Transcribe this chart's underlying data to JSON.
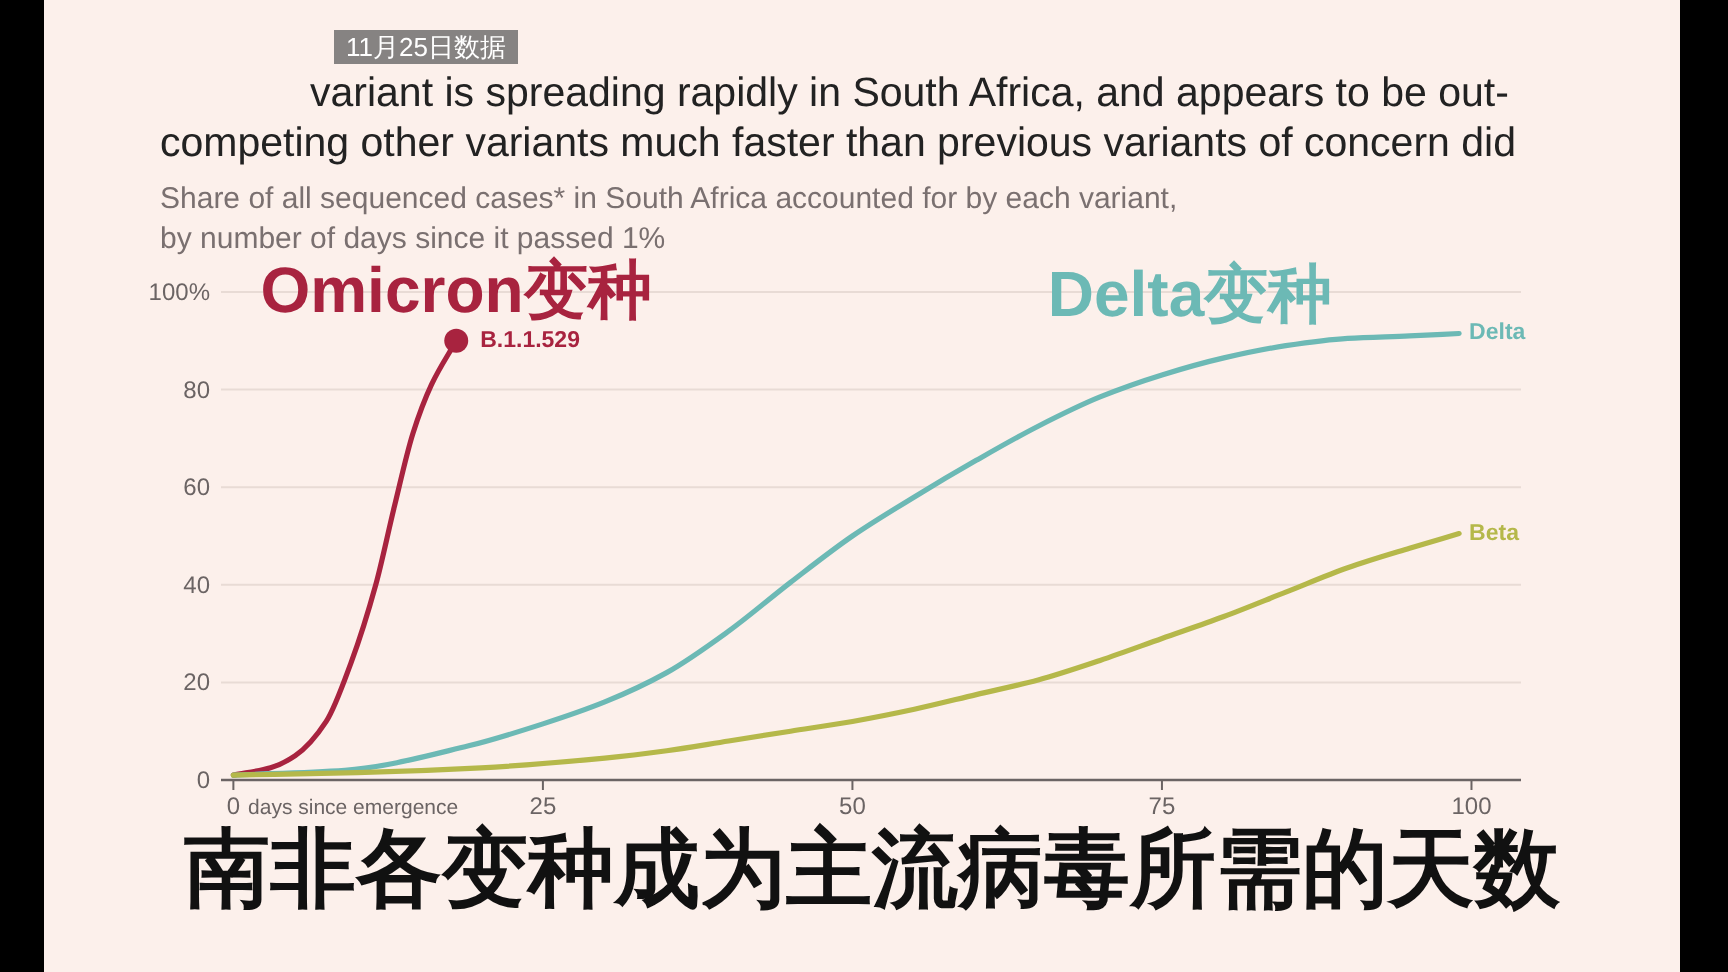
{
  "chart_data": {
    "type": "line",
    "title": "variant is spreading rapidly in South Africa, and appears to be out-competing other variants much faster than previous variants of concern did",
    "subtitle": "Share of all sequenced cases* in South Africa accounted for by each variant, by number of days since it passed 1%",
    "xlabel": "days since emergence",
    "xlim": [
      -1,
      104
    ],
    "xticks": [
      0,
      25,
      50,
      75,
      100
    ],
    "ylim": [
      0,
      100
    ],
    "yticks": [
      0,
      20,
      40,
      60,
      80,
      {
        "value": 100,
        "label": "100%"
      }
    ],
    "grid": "y",
    "line_style": "solid",
    "series": [
      {
        "name": "B.1.1.529",
        "color": "#a8233f",
        "x": [
          0,
          3,
          5,
          7.5,
          9.5,
          11.5,
          13,
          14.5,
          16,
          18
        ],
        "values": [
          1,
          2.5,
          5,
          12,
          24,
          40,
          56,
          71,
          81,
          90
        ]
      },
      {
        "type": "scatter",
        "marker": "circle",
        "color": "#a8233f",
        "x": [
          18
        ],
        "values": [
          90
        ]
      },
      {
        "name": "Delta",
        "color": "#6cb9b5",
        "x": [
          0,
          9,
          19,
          25,
          30,
          35,
          40,
          45,
          50,
          55,
          60,
          65,
          70,
          75,
          80,
          85,
          90,
          95,
          99
        ],
        "values": [
          1,
          2,
          7,
          11.5,
          16,
          22,
          30.5,
          40.5,
          50,
          58,
          65.5,
          72.5,
          78.5,
          83,
          86.5,
          89,
          90.5,
          91,
          91.5
        ]
      },
      {
        "name": "Beta",
        "color": "#b5b84a",
        "x": [
          0,
          10,
          20,
          30,
          35,
          40,
          45,
          50,
          55,
          60,
          65,
          70,
          75,
          80,
          85,
          90,
          95,
          99
        ],
        "values": [
          1,
          1.5,
          2.5,
          4.5,
          6,
          8,
          10,
          12,
          14.5,
          17.5,
          20.5,
          24.5,
          29,
          33.5,
          38.5,
          43.5,
          47.5,
          50.5
        ]
      }
    ],
    "annotations": [
      "11月25日数据",
      "Omicron变种",
      "Delta变种",
      "南非各变种成为主流病毒所需的天数"
    ]
  }
}
